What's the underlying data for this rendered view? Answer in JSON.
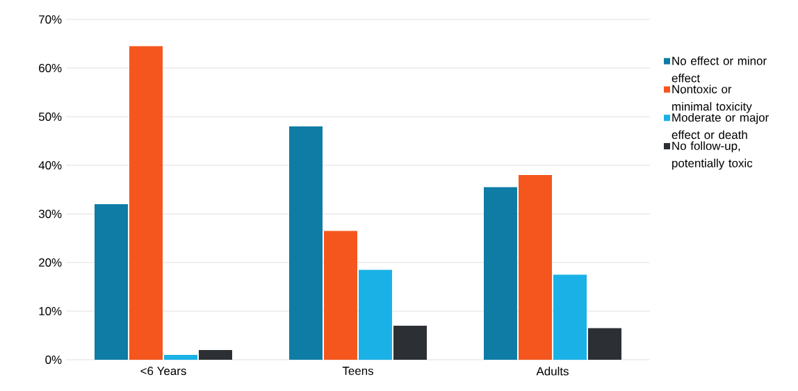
{
  "chart_data": {
    "type": "bar",
    "categories": [
      "<6 Years",
      "Teens",
      "Adults"
    ],
    "series": [
      {
        "name": "No effect or minor effect",
        "color": "#0e7ca5",
        "values": [
          32,
          48,
          35.5
        ]
      },
      {
        "name": "Nontoxic or minimal toxicity",
        "color": "#f4561e",
        "values": [
          64.5,
          26.5,
          38
        ]
      },
      {
        "name": "Moderate or major effect or death",
        "color": "#1ab2e6",
        "values": [
          1,
          18.5,
          17.5
        ]
      },
      {
        "name": "No follow-up, potentially toxic",
        "color": "#2c3034",
        "values": [
          2,
          7,
          6.5
        ]
      }
    ],
    "ylim": [
      0,
      70
    ],
    "yticks": [
      {
        "value": 0,
        "label": "0%"
      },
      {
        "value": 10,
        "label": "10%"
      },
      {
        "value": 20,
        "label": "20%"
      },
      {
        "value": 30,
        "label": "30%"
      },
      {
        "value": 40,
        "label": "40%"
      },
      {
        "value": 50,
        "label": "50%"
      },
      {
        "value": 60,
        "label": "60%"
      },
      {
        "value": 70,
        "label": "70%"
      }
    ],
    "grid": "y",
    "legend": "right"
  }
}
